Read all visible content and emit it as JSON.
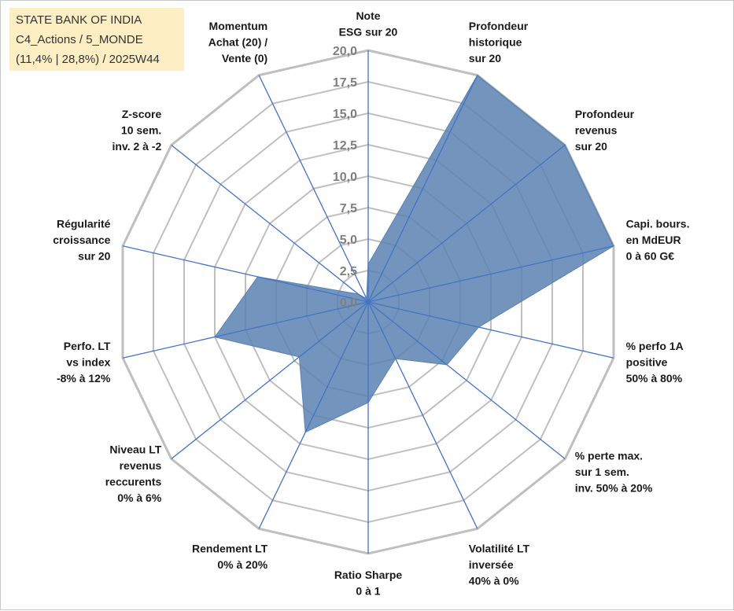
{
  "title_box": {
    "line1": "STATE BANK OF INDIA",
    "line2": "C4_Actions / 5_MONDE",
    "line3": "(11,4% | 28,8%) / 2025W44"
  },
  "chart_data": {
    "type": "radar",
    "title": "STATE BANK OF INDIA",
    "range": [
      0,
      20
    ],
    "ticks": [
      "0,0",
      "2,5",
      "5,0",
      "7,5",
      "10,0",
      "12,5",
      "15,0",
      "17,5",
      "20,0"
    ],
    "tick_values": [
      0,
      2.5,
      5,
      7.5,
      10,
      12.5,
      15,
      17.5,
      20
    ],
    "axes": [
      {
        "label": [
          "Note",
          "ESG sur 20"
        ],
        "value": 3.0
      },
      {
        "label": [
          "Profondeur",
          "historique",
          "sur 20"
        ],
        "value": 20.0
      },
      {
        "label": [
          "Profondeur",
          "revenus",
          "sur 20"
        ],
        "value": 20.0
      },
      {
        "label": [
          "Capi. bours.",
          "en MdEUR",
          "0 à 60 G€"
        ],
        "value": 20.0
      },
      {
        "label": [
          "% perfo 1A",
          "positive",
          "50% à 80%"
        ],
        "value": 9.0
      },
      {
        "label": [
          "% perte max.",
          "sur 1 sem.",
          "inv. 50% à 20%"
        ],
        "value": 8.0
      },
      {
        "label": [
          "Volatilité LT",
          "inversée",
          "40% à 0%"
        ],
        "value": 5.0
      },
      {
        "label": [
          "Ratio Sharpe",
          "0 à 1"
        ],
        "value": 8.0
      },
      {
        "label": [
          "Rendement LT",
          "0% à 20%"
        ],
        "value": 11.5
      },
      {
        "label": [
          "Niveau LT",
          "revenus",
          "reccurents",
          "0% à 6%"
        ],
        "value": 7.0
      },
      {
        "label": [
          "Perfo. LT",
          "vs index",
          "-8% à 12%"
        ],
        "value": 12.5
      },
      {
        "label": [
          "Régularité",
          "croissance",
          "sur 20"
        ],
        "value": 9.0
      },
      {
        "label": [
          "Z-score",
          "10 sem.",
          "inv. 2 à -2"
        ],
        "value": 1.0
      },
      {
        "label": [
          "Momentum",
          "Achat (20) /",
          "Vente (0)"
        ],
        "value": 0.3
      }
    ],
    "fill_color": "#5b82b2",
    "axis_color": "#4472c4",
    "grid_color": "#bfbfbf"
  }
}
